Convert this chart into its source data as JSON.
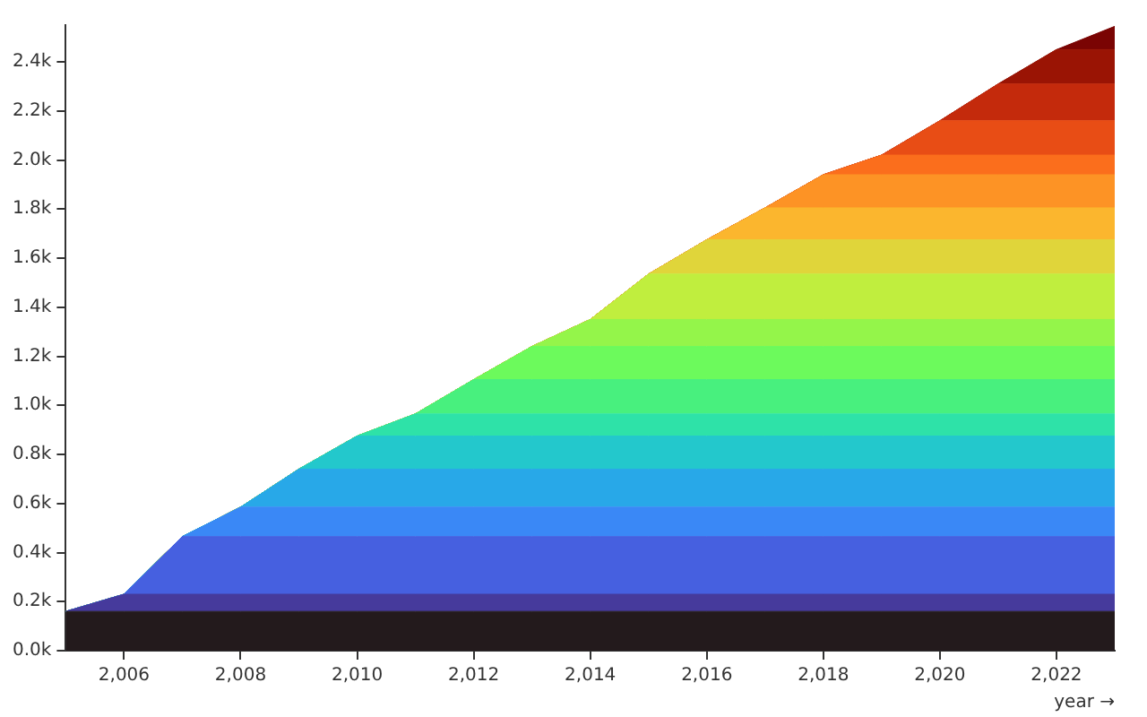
{
  "chart_data": {
    "type": "area",
    "stacked": true,
    "xlabel": "year →",
    "x": [
      2005,
      2006,
      2007,
      2008,
      2009,
      2010,
      2011,
      2012,
      2013,
      2014,
      2015,
      2016,
      2017,
      2018,
      2019,
      2020,
      2021,
      2022,
      2023
    ],
    "xlim": [
      2005,
      2023
    ],
    "xticks": [
      {
        "value": 2006,
        "label": "2,006"
      },
      {
        "value": 2008,
        "label": "2,008"
      },
      {
        "value": 2010,
        "label": "2,010"
      },
      {
        "value": 2012,
        "label": "2,012"
      },
      {
        "value": 2014,
        "label": "2,014"
      },
      {
        "value": 2016,
        "label": "2,016"
      },
      {
        "value": 2018,
        "label": "2,018"
      },
      {
        "value": 2020,
        "label": "2,020"
      },
      {
        "value": 2022,
        "label": "2,022"
      }
    ],
    "ylim": [
      0,
      2550
    ],
    "yticks": [
      {
        "value": 0,
        "label": "0.0k"
      },
      {
        "value": 200,
        "label": "0.2k"
      },
      {
        "value": 400,
        "label": "0.4k"
      },
      {
        "value": 600,
        "label": "0.6k"
      },
      {
        "value": 800,
        "label": "0.8k"
      },
      {
        "value": 1000,
        "label": "1.0k"
      },
      {
        "value": 1200,
        "label": "1.2k"
      },
      {
        "value": 1400,
        "label": "1.4k"
      },
      {
        "value": 1600,
        "label": "1.6k"
      },
      {
        "value": 1800,
        "label": "1.8k"
      },
      {
        "value": 2000,
        "label": "2.0k"
      },
      {
        "value": 2200,
        "label": "2.2k"
      },
      {
        "value": 2400,
        "label": "2.4k"
      }
    ],
    "series": [
      {
        "color": "#231a1c",
        "values": [
          160,
          160,
          160,
          160,
          160,
          160,
          160,
          160,
          160,
          160,
          160,
          160,
          160,
          160,
          160,
          160,
          160,
          160,
          160
        ]
      },
      {
        "color": "#463a9c",
        "values": [
          0,
          70,
          70,
          70,
          70,
          70,
          70,
          70,
          70,
          70,
          70,
          70,
          70,
          70,
          70,
          70,
          70,
          70,
          70
        ]
      },
      {
        "color": "#4660e0",
        "values": [
          0,
          0,
          235,
          235,
          235,
          235,
          235,
          235,
          235,
          235,
          235,
          235,
          235,
          235,
          235,
          235,
          235,
          235,
          235
        ]
      },
      {
        "color": "#3a88f6",
        "values": [
          0,
          0,
          0,
          120,
          120,
          120,
          120,
          120,
          120,
          120,
          120,
          120,
          120,
          120,
          120,
          120,
          120,
          120,
          120
        ]
      },
      {
        "color": "#28a8e8",
        "values": [
          0,
          0,
          0,
          0,
          155,
          155,
          155,
          155,
          155,
          155,
          155,
          155,
          155,
          155,
          155,
          155,
          155,
          155,
          155
        ]
      },
      {
        "color": "#23c8cc",
        "values": [
          0,
          0,
          0,
          0,
          0,
          135,
          135,
          135,
          135,
          135,
          135,
          135,
          135,
          135,
          135,
          135,
          135,
          135,
          135
        ]
      },
      {
        "color": "#2ee2a8",
        "values": [
          0,
          0,
          0,
          0,
          0,
          0,
          90,
          90,
          90,
          90,
          90,
          90,
          90,
          90,
          90,
          90,
          90,
          90,
          90
        ]
      },
      {
        "color": "#48f07e",
        "values": [
          0,
          0,
          0,
          0,
          0,
          0,
          0,
          140,
          140,
          140,
          140,
          140,
          140,
          140,
          140,
          140,
          140,
          140,
          140
        ]
      },
      {
        "color": "#6cfa5c",
        "values": [
          0,
          0,
          0,
          0,
          0,
          0,
          0,
          0,
          135,
          135,
          135,
          135,
          135,
          135,
          135,
          135,
          135,
          135,
          135
        ]
      },
      {
        "color": "#94f54a",
        "values": [
          0,
          0,
          0,
          0,
          0,
          0,
          0,
          0,
          0,
          110,
          110,
          110,
          110,
          110,
          110,
          110,
          110,
          110,
          110
        ]
      },
      {
        "color": "#c0ee3e",
        "values": [
          0,
          0,
          0,
          0,
          0,
          0,
          0,
          0,
          0,
          0,
          185,
          185,
          185,
          185,
          185,
          185,
          185,
          185,
          185
        ]
      },
      {
        "color": "#e0d53a",
        "values": [
          0,
          0,
          0,
          0,
          0,
          0,
          0,
          0,
          0,
          0,
          0,
          140,
          140,
          140,
          140,
          140,
          140,
          140,
          140
        ]
      },
      {
        "color": "#fbb62e",
        "values": [
          0,
          0,
          0,
          0,
          0,
          0,
          0,
          0,
          0,
          0,
          0,
          0,
          130,
          130,
          130,
          130,
          130,
          130,
          130
        ]
      },
      {
        "color": "#fd9325",
        "values": [
          0,
          0,
          0,
          0,
          0,
          0,
          0,
          0,
          0,
          0,
          0,
          0,
          0,
          135,
          135,
          135,
          135,
          135,
          135
        ]
      },
      {
        "color": "#fb6e1c",
        "values": [
          0,
          0,
          0,
          0,
          0,
          0,
          0,
          0,
          0,
          0,
          0,
          0,
          0,
          0,
          80,
          80,
          80,
          80,
          80
        ]
      },
      {
        "color": "#e84d15",
        "values": [
          0,
          0,
          0,
          0,
          0,
          0,
          0,
          0,
          0,
          0,
          0,
          0,
          0,
          0,
          0,
          140,
          140,
          140,
          140
        ]
      },
      {
        "color": "#c42a0c",
        "values": [
          0,
          0,
          0,
          0,
          0,
          0,
          0,
          0,
          0,
          0,
          0,
          0,
          0,
          0,
          0,
          0,
          150,
          150,
          150
        ]
      },
      {
        "color": "#9a1404",
        "values": [
          0,
          0,
          0,
          0,
          0,
          0,
          0,
          0,
          0,
          0,
          0,
          0,
          0,
          0,
          0,
          0,
          0,
          140,
          140
        ]
      },
      {
        "color": "#7a0403",
        "values": [
          0,
          0,
          0,
          0,
          0,
          0,
          0,
          0,
          0,
          0,
          0,
          0,
          0,
          0,
          0,
          0,
          0,
          0,
          95
        ]
      }
    ]
  }
}
